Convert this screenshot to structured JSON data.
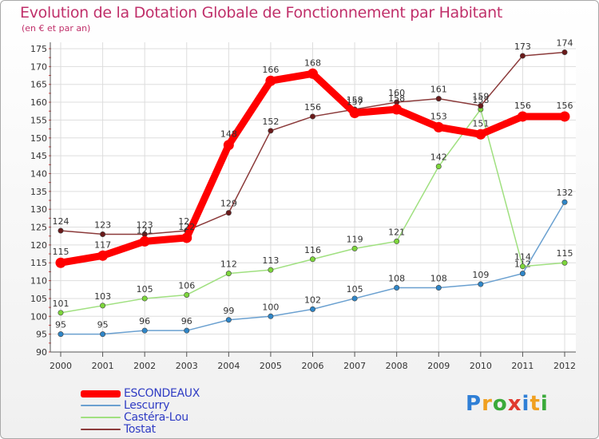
{
  "title": "Evolution de la Dotation Globale de Fonctionnement par Habitant",
  "subtitle": "(en € et par an)",
  "brand": {
    "text": "Proxiti",
    "letters": [
      "P",
      "r",
      "o",
      "x",
      "i",
      "t",
      "i"
    ],
    "colors": [
      "#2f7fd6",
      "#f0a020",
      "#3aaa3a",
      "#e03a30",
      "#2f7fd6",
      "#f0a020",
      "#3aaa3a"
    ]
  },
  "chart_data": {
    "type": "line",
    "title": "Evolution de la Dotation Globale de Fonctionnement par Habitant",
    "ylabel": "(en € et par an)",
    "xlabel": "",
    "x": [
      "2000",
      "2001",
      "2002",
      "2003",
      "2004",
      "2005",
      "2006",
      "2007",
      "2008",
      "2009",
      "2010",
      "2011",
      "2012"
    ],
    "ylim": [
      90,
      175
    ],
    "yticks": [
      90,
      95,
      100,
      105,
      110,
      115,
      120,
      125,
      130,
      135,
      140,
      145,
      150,
      155,
      160,
      165,
      170,
      175
    ],
    "grid": true,
    "legend_position": "bottom-left",
    "series": [
      {
        "name": "ESCONDEAUX",
        "color": "#ff0000",
        "marker": "#ff0000",
        "thick": true,
        "values": [
          115,
          117,
          121,
          122,
          148,
          166,
          168,
          157,
          158,
          153,
          151,
          156,
          156
        ]
      },
      {
        "name": "Lescurry",
        "color": "#6aa0d0",
        "marker": "#2f86c8",
        "thick": false,
        "values": [
          95,
          95,
          96,
          96,
          99,
          100,
          102,
          105,
          108,
          108,
          109,
          112,
          132
        ]
      },
      {
        "name": "Castéra-Lou",
        "color": "#a0e080",
        "marker": "#7dd63c",
        "thick": false,
        "values": [
          101,
          103,
          105,
          106,
          112,
          113,
          116,
          119,
          121,
          142,
          158,
          114,
          115
        ]
      },
      {
        "name": "Tostat",
        "color": "#8b3a3a",
        "marker": "#6a1a1a",
        "thick": false,
        "values": [
          124,
          123,
          123,
          124,
          129,
          152,
          156,
          158,
          160,
          161,
          159,
          173,
          174
        ]
      }
    ]
  }
}
